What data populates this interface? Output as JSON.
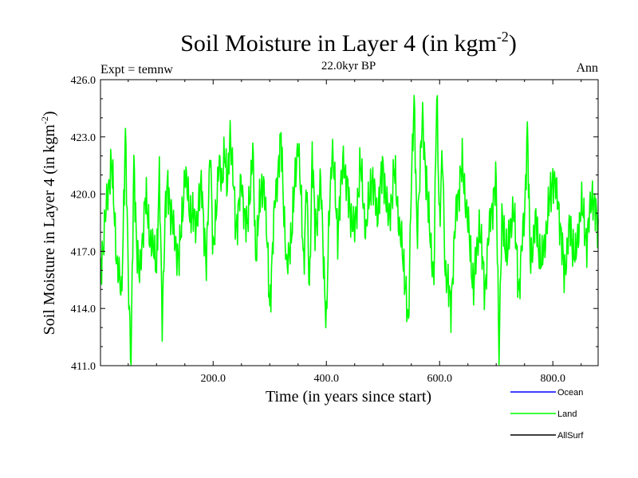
{
  "chart_data": {
    "type": "line",
    "title": "Soil Moisture in Layer 4 (in kgm",
    "title_superscript": "-2",
    "title_suffix": ")",
    "subtitle": "22.0kyr BP",
    "left_label": "Expt = temnw",
    "right_label": "Ann",
    "xlabel": "Time (in years since start)",
    "ylabel": "Soil Moisture in Layer 4 (in kgm",
    "ylabel_superscript": "-2",
    "ylabel_suffix": ")",
    "xlim": [
      1,
      880
    ],
    "ylim": [
      411.0,
      426.0
    ],
    "x_ticks": [
      200,
      400,
      600,
      800
    ],
    "x_tick_labels": [
      "200.0",
      "400.0",
      "600.0",
      "800.0"
    ],
    "y_ticks": [
      411,
      414,
      417,
      420,
      423,
      426
    ],
    "y_tick_labels": [
      "411.0",
      "414.0",
      "417.0",
      "420.0",
      "423.0",
      "426.0"
    ],
    "legend_position": "bottom-right",
    "legend": [
      {
        "name": "Ocean",
        "color": "#0000ff"
      },
      {
        "name": "Land",
        "color": "#00ff00"
      },
      {
        "name": "AllSurf",
        "color": "#000000"
      }
    ],
    "series": [
      {
        "name": "Land",
        "color": "#00ff00",
        "x": [
          1,
          10,
          20,
          30,
          38,
          45,
          50,
          55,
          60,
          65,
          70,
          80,
          90,
          100,
          105,
          110,
          115,
          120,
          130,
          140,
          150,
          160,
          170,
          180,
          188,
          195,
          200,
          210,
          215,
          220,
          225,
          230,
          240,
          250,
          260,
          270,
          275,
          280,
          290,
          300,
          310,
          320,
          330,
          340,
          350,
          360,
          365,
          370,
          375,
          380,
          390,
          400,
          405,
          410,
          420,
          430,
          440,
          450,
          460,
          470,
          480,
          490,
          500,
          510,
          520,
          530,
          540,
          545,
          550,
          555,
          560,
          565,
          570,
          580,
          590,
          595,
          600,
          605,
          610,
          620,
          630,
          640,
          650,
          660,
          670,
          680,
          690,
          700,
          705,
          710,
          720,
          730,
          740,
          750,
          755,
          760,
          770,
          780,
          790,
          800,
          810,
          820,
          830,
          840,
          850,
          860,
          870,
          880
        ],
        "values": [
          416.0,
          418.8,
          421.8,
          416.5,
          414.6,
          423.0,
          416.0,
          411.2,
          421.5,
          417.5,
          415.5,
          419.8,
          417.5,
          416.4,
          420.8,
          413.4,
          418.8,
          420.5,
          418.0,
          416.5,
          421.0,
          419.0,
          418.5,
          420.5,
          416.0,
          422.8,
          416.5,
          421.7,
          420.3,
          422.5,
          420.0,
          423.5,
          418.2,
          420.5,
          418.0,
          422.3,
          416.5,
          419.0,
          420.8,
          414.2,
          420.0,
          422.8,
          415.8,
          418.5,
          423.0,
          416.5,
          420.5,
          414.8,
          422.3,
          418.0,
          420.5,
          413.0,
          419.0,
          422.5,
          418.0,
          422.0,
          419.5,
          418.0,
          421.5,
          418.0,
          421.0,
          419.0,
          421.5,
          418.5,
          421.2,
          418.0,
          415.3,
          412.7,
          421.0,
          424.7,
          418.0,
          421.0,
          424.0,
          419.0,
          415.5,
          425.5,
          418.5,
          422.0,
          416.0,
          414.2,
          419.5,
          421.5,
          418.5,
          415.0,
          418.5,
          415.0,
          419.0,
          420.5,
          412.0,
          418.5,
          416.8,
          419.5,
          415.0,
          419.0,
          423.5,
          416.5,
          418.5,
          416.2,
          418.5,
          421.0,
          419.5,
          415.8,
          418.3,
          416.5,
          419.5,
          417.5,
          420.2,
          418.0
        ]
      }
    ]
  }
}
